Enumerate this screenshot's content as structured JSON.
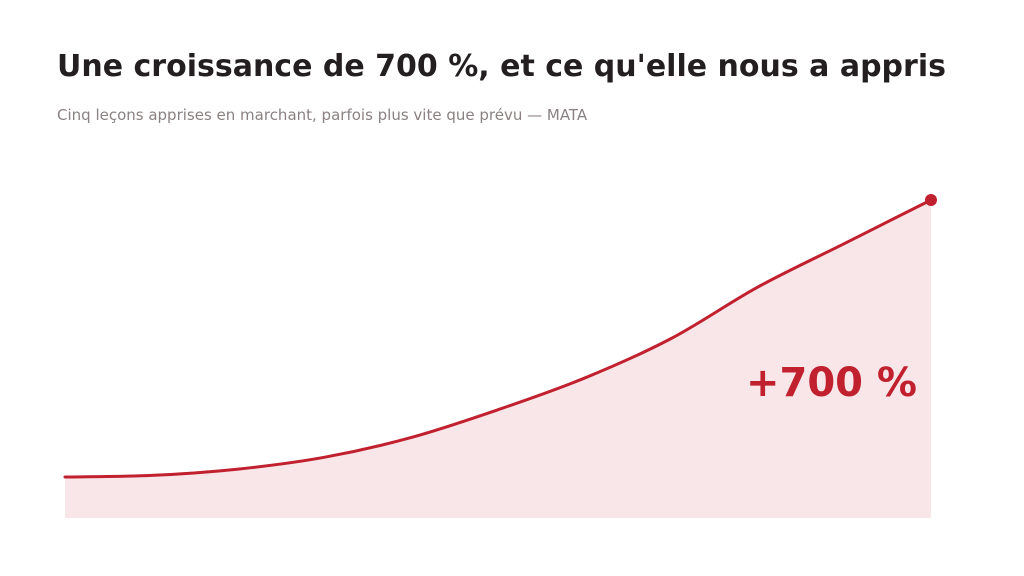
{
  "header": {
    "title": "Une croissance de 700 %, et ce qu'elle nous a appris",
    "subtitle": "Cinq leçons apprises en marchant, parfois plus vite que prévu — MATA"
  },
  "colors": {
    "accent": "#c1202e",
    "area_fill": "#f9e6e8",
    "title": "#231f20",
    "subtitle": "#8a8182"
  },
  "chart_data": {
    "type": "area",
    "title": "Une croissance de 700 %, et ce qu'elle nous a appris",
    "subtitle": "Cinq leçons apprises en marchant, parfois plus vite que prévu — MATA",
    "xlabel": "",
    "ylabel": "",
    "axes_visible": false,
    "grid": false,
    "legend": "none",
    "x": [
      0,
      1,
      2,
      3,
      4,
      5,
      6,
      7,
      8,
      9,
      10
    ],
    "values": [
      1.0,
      1.04,
      1.2,
      1.5,
      2.0,
      2.7,
      3.5,
      4.5,
      5.8,
      6.9,
      8.0
    ],
    "ylim": [
      0,
      8.0
    ],
    "xlim": [
      0,
      10
    ],
    "annotations": [
      {
        "text": "+700 %",
        "target": "last-point"
      }
    ],
    "end_marker": true
  }
}
